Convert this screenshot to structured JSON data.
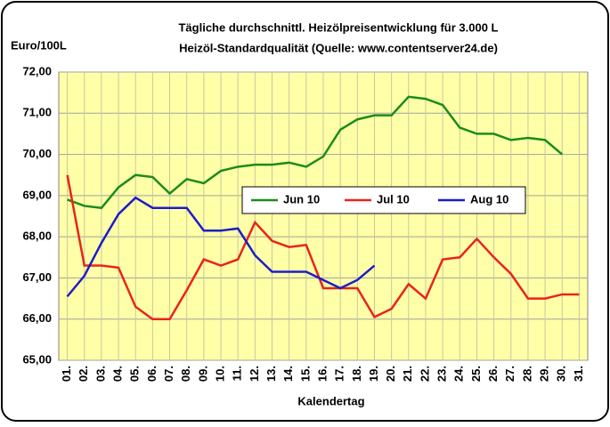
{
  "chart_data": {
    "type": "line",
    "title": "Tägliche durchschnittl. Heizölpreisentwicklung für 3.000 L",
    "subtitle": "Heizöl-Standardqualität (Quelle: www.contentserver24.de)",
    "y_label": "Euro/100L",
    "x_label": "Kalendertag",
    "categories": [
      "01.",
      "02.",
      "03.",
      "04.",
      "05.",
      "06.",
      "07.",
      "08.",
      "09.",
      "10.",
      "11.",
      "12.",
      "13.",
      "14.",
      "15.",
      "16.",
      "17.",
      "18.",
      "19.",
      "20.",
      "21.",
      "22.",
      "23.",
      "24.",
      "25.",
      "26.",
      "27.",
      "28.",
      "29.",
      "30.",
      "31."
    ],
    "series": [
      {
        "name": "Jun 10",
        "color": "#1a8c1a",
        "values": [
          68.9,
          68.75,
          68.7,
          69.2,
          69.5,
          69.45,
          69.05,
          69.4,
          69.3,
          69.6,
          69.7,
          69.75,
          69.75,
          69.8,
          69.7,
          69.95,
          70.6,
          70.85,
          70.95,
          70.95,
          71.4,
          71.35,
          71.2,
          70.65,
          70.5,
          70.5,
          70.35,
          70.4,
          70.35,
          70.0,
          null
        ]
      },
      {
        "name": "Jul 10",
        "color": "#e8241c",
        "values": [
          69.5,
          67.3,
          67.3,
          67.25,
          66.3,
          66.0,
          66.0,
          66.7,
          67.45,
          67.3,
          67.45,
          68.35,
          67.9,
          67.75,
          67.8,
          66.75,
          66.75,
          66.75,
          66.05,
          66.25,
          66.85,
          66.5,
          67.45,
          67.5,
          67.95,
          67.5,
          67.1,
          66.5,
          66.5,
          66.6,
          66.6
        ]
      },
      {
        "name": "Aug 10",
        "color": "#1c1cc8",
        "values": [
          66.55,
          67.05,
          67.85,
          68.55,
          68.95,
          68.7,
          68.7,
          68.7,
          68.15,
          68.15,
          68.2,
          67.55,
          67.15,
          67.15,
          67.15,
          66.95,
          66.75,
          66.95,
          67.3,
          null,
          null,
          null,
          null,
          null,
          null,
          null,
          null,
          null,
          null,
          null,
          null
        ]
      }
    ],
    "ylim": [
      65,
      72
    ],
    "yticks": [
      {
        "value": 65,
        "label": "65,00"
      },
      {
        "value": 66,
        "label": "66,00"
      },
      {
        "value": 67,
        "label": "67,00"
      },
      {
        "value": 68,
        "label": "68,00"
      },
      {
        "value": 69,
        "label": "69,00"
      },
      {
        "value": 70,
        "label": "70,00"
      },
      {
        "value": 71,
        "label": "71,00"
      },
      {
        "value": 72,
        "label": "72,00"
      }
    ],
    "grid": true
  }
}
